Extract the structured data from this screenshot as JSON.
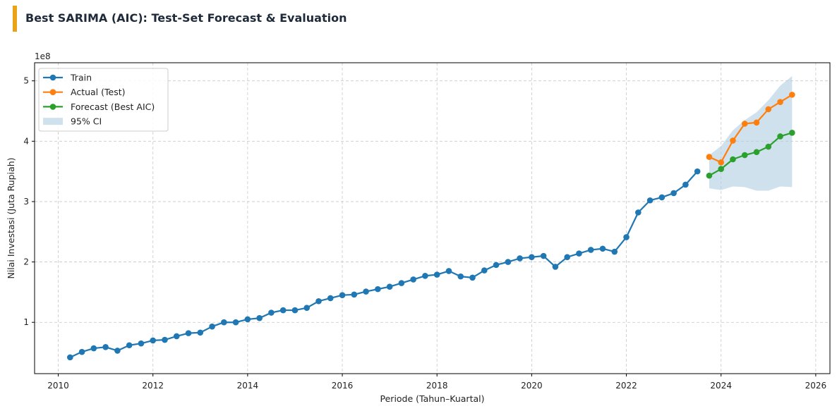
{
  "header": {
    "title": "Best SARIMA (AIC): Test-Set Forecast & Evaluation",
    "accent_color": "#e8a317"
  },
  "chart_data": {
    "type": "line",
    "xlabel": "Periode (Tahun–Kuartal)",
    "ylabel": "Nilai Investasi (Juta Rupiah)",
    "y_offset_label": "1e8",
    "xlim": [
      2009.5,
      2026.3
    ],
    "ylim": [
      0.15,
      5.3
    ],
    "xticks": [
      2010,
      2012,
      2014,
      2016,
      2018,
      2020,
      2022,
      2024,
      2026
    ],
    "xtick_labels": [
      "2010",
      "2012",
      "2014",
      "2016",
      "2018",
      "2020",
      "2022",
      "2024",
      "2026"
    ],
    "yticks": [
      1,
      2,
      3,
      4,
      5
    ],
    "ytick_labels": [
      "1",
      "2",
      "3",
      "4",
      "5"
    ],
    "grid": true,
    "legend_position": "top-left",
    "series": [
      {
        "name": "Train",
        "color": "#1f77b4",
        "x": [
          2010.25,
          2010.5,
          2010.75,
          2011.0,
          2011.25,
          2011.5,
          2011.75,
          2012.0,
          2012.25,
          2012.5,
          2012.75,
          2013.0,
          2013.25,
          2013.5,
          2013.75,
          2014.0,
          2014.25,
          2014.5,
          2014.75,
          2015.0,
          2015.25,
          2015.5,
          2015.75,
          2016.0,
          2016.25,
          2016.5,
          2016.75,
          2017.0,
          2017.25,
          2017.5,
          2017.75,
          2018.0,
          2018.25,
          2018.5,
          2018.75,
          2019.0,
          2019.25,
          2019.5,
          2019.75,
          2020.0,
          2020.25,
          2020.5,
          2020.75,
          2021.0,
          2021.25,
          2021.5,
          2021.75,
          2022.0,
          2022.25,
          2022.5,
          2022.75,
          2023.0,
          2023.25,
          2023.5
        ],
        "values": [
          0.42,
          0.51,
          0.57,
          0.59,
          0.53,
          0.62,
          0.65,
          0.7,
          0.71,
          0.77,
          0.82,
          0.83,
          0.93,
          1.0,
          1.0,
          1.05,
          1.07,
          1.16,
          1.2,
          1.2,
          1.24,
          1.35,
          1.4,
          1.45,
          1.46,
          1.51,
          1.55,
          1.59,
          1.65,
          1.71,
          1.77,
          1.79,
          1.85,
          1.76,
          1.74,
          1.86,
          1.95,
          2.0,
          2.06,
          2.08,
          2.1,
          1.92,
          2.08,
          2.14,
          2.2,
          2.22,
          2.17,
          2.41,
          2.82,
          3.02,
          3.07,
          3.14,
          3.28,
          3.5
        ]
      },
      {
        "name": "Actual (Test)",
        "color": "#ff7f0e",
        "x": [
          2023.75,
          2024.0,
          2024.25,
          2024.5,
          2024.75,
          2025.0,
          2025.25,
          2025.5
        ],
        "values": [
          3.74,
          3.65,
          4.01,
          4.29,
          4.31,
          4.53,
          4.65,
          4.77
        ]
      },
      {
        "name": "Forecast (Best AIC)",
        "color": "#2ca02c",
        "x": [
          2023.75,
          2024.0,
          2024.25,
          2024.5,
          2024.75,
          2025.0,
          2025.25,
          2025.5
        ],
        "values": [
          3.43,
          3.54,
          3.7,
          3.77,
          3.82,
          3.91,
          4.08,
          4.14
        ]
      }
    ],
    "confidence_interval": {
      "name": "95% CI",
      "color": "#b0cde3",
      "x": [
        2023.75,
        2024.0,
        2024.25,
        2024.5,
        2024.75,
        2025.0,
        2025.25,
        2025.5
      ],
      "lower": [
        3.22,
        3.19,
        3.25,
        3.24,
        3.18,
        3.18,
        3.25,
        3.24
      ],
      "upper": [
        3.77,
        3.92,
        4.18,
        4.35,
        4.48,
        4.68,
        4.92,
        5.08
      ]
    }
  }
}
